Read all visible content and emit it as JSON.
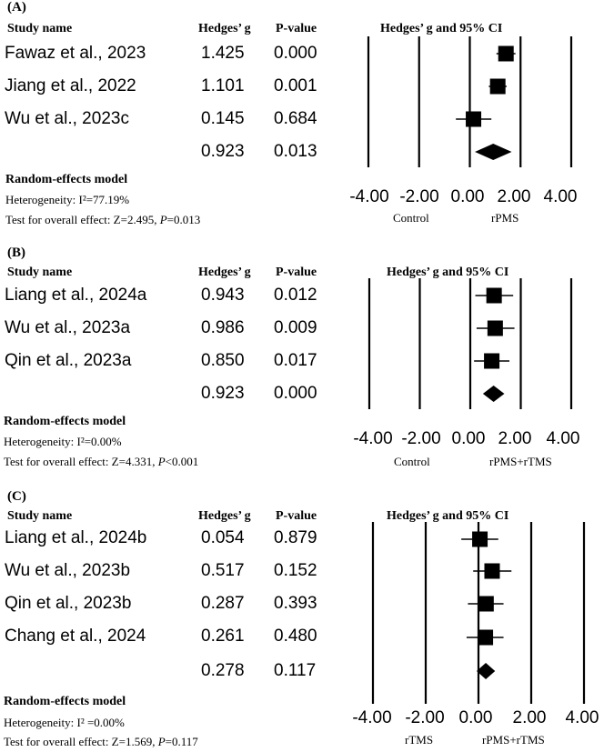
{
  "headers": {
    "study": "Study name",
    "hedges": "Hedges’ g",
    "pvalue": "P-value",
    "ci": "Hedges’ g and 95% CI"
  },
  "model_label": "Random-effects model",
  "axis_ticks": [
    "-4.00",
    "-2.00",
    "0.00",
    "2.00",
    "4.00"
  ],
  "chart_data": [
    {
      "type": "forest",
      "label": "(A)",
      "studies": [
        {
          "name": "Fawaz et al., 2023",
          "g_label": "1.425",
          "p_label": "0.000",
          "g": 1.425,
          "ci": [
            1.05,
            1.8
          ],
          "weight": 1.0
        },
        {
          "name": "Jiang et al., 2022",
          "g_label": "1.101",
          "p_label": "0.001",
          "g": 1.101,
          "ci": [
            0.75,
            1.45
          ],
          "weight": 1.0
        },
        {
          "name": "Wu et al., 2023c",
          "g_label": "0.145",
          "p_label": "0.684",
          "g": 0.145,
          "ci": [
            -0.55,
            0.85
          ],
          "weight": 1.0
        }
      ],
      "summary": {
        "g_label": "0.923",
        "p_label": "0.013",
        "g": 0.923,
        "ci": [
          0.2,
          1.65
        ]
      },
      "heterogeneity": "Heterogeneity: I²=77.19%",
      "overall_prefix": "Test for overall effect: Z=2.495, ",
      "overall_p": "P",
      "overall_suffix": "=0.013",
      "xlim": [
        -4.0,
        4.0
      ],
      "left_label": "Control",
      "right_label": "rPMS"
    },
    {
      "type": "forest",
      "label": "(B)",
      "studies": [
        {
          "name": "Liang et al., 2024a",
          "g_label": "0.943",
          "p_label": "0.012",
          "g": 0.943,
          "ci": [
            0.2,
            1.7
          ],
          "weight": 1.0
        },
        {
          "name": "Wu et al., 2023a",
          "g_label": "0.986",
          "p_label": "0.009",
          "g": 0.986,
          "ci": [
            0.25,
            1.75
          ],
          "weight": 1.0
        },
        {
          "name": "Qin et al., 2023a",
          "g_label": "0.850",
          "p_label": "0.017",
          "g": 0.85,
          "ci": [
            0.15,
            1.55
          ],
          "weight": 1.0
        }
      ],
      "summary": {
        "g_label": "0.923",
        "p_label": "0.000",
        "g": 0.923,
        "ci": [
          0.5,
          1.35
        ]
      },
      "heterogeneity": "Heterogeneity: I²=0.00%",
      "overall_prefix": "Test for overall effect: Z=4.331, ",
      "overall_p": "P",
      "overall_suffix": "<0.001",
      "xlim": [
        -4.0,
        4.0
      ],
      "left_label": "Control",
      "right_label": "rPMS+rTMS"
    },
    {
      "type": "forest",
      "label": "(C)",
      "studies": [
        {
          "name": "Liang et al., 2024b",
          "g_label": "0.054",
          "p_label": "0.879",
          "g": 0.054,
          "ci": [
            -0.65,
            0.75
          ],
          "weight": 1.0
        },
        {
          "name": "Wu et al., 2023b",
          "g_label": "0.517",
          "p_label": "0.152",
          "g": 0.517,
          "ci": [
            -0.2,
            1.25
          ],
          "weight": 1.0
        },
        {
          "name": "Qin et al., 2023b",
          "g_label": "0.287",
          "p_label": "0.393",
          "g": 0.287,
          "ci": [
            -0.4,
            0.95
          ],
          "weight": 1.0
        },
        {
          "name": "Chang et al., 2024",
          "g_label": "0.261",
          "p_label": "0.480",
          "g": 0.261,
          "ci": [
            -0.45,
            0.95
          ],
          "weight": 1.0
        }
      ],
      "summary": {
        "g_label": "0.278",
        "p_label": "0.117",
        "g": 0.278,
        "ci": [
          -0.07,
          0.63
        ]
      },
      "heterogeneity": "Heterogeneity: I² =0.00%",
      "overall_prefix": "Test for overall effect: Z=1.569, ",
      "overall_p": "P",
      "overall_suffix": "=0.117",
      "xlim": [
        -4.0,
        4.0
      ],
      "left_label": "rTMS",
      "right_label": "rPMS+rTMS"
    }
  ]
}
